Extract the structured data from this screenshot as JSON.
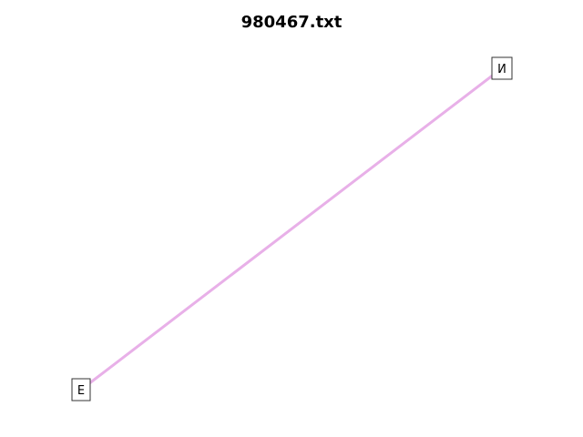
{
  "title": "980467.txt",
  "edge_color": "#e8b0e8",
  "nodes": [
    {
      "id": "n1",
      "label": "И"
    },
    {
      "id": "n2",
      "label": "Е"
    }
  ],
  "edges": [
    {
      "from": "n1",
      "to": "n2"
    }
  ]
}
